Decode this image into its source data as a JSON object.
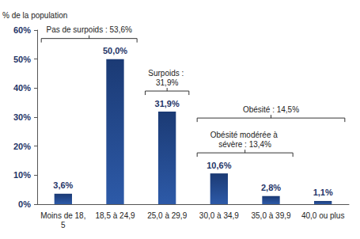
{
  "chart_data": {
    "type": "bar",
    "ylabel": "% de la population",
    "categories": [
      "Moins de 18,5",
      "18,5 à 24,9",
      "25,0 à 29,9",
      "30,0 à 34,9",
      "35,0 à 39,9",
      "40,0 ou plus"
    ],
    "values": [
      3.6,
      50.0,
      31.9,
      10.6,
      2.8,
      1.1
    ],
    "value_labels": [
      "3,6%",
      "50,0%",
      "31,9%",
      "10,6%",
      "2,8%",
      "1,1%"
    ],
    "data_labels": true,
    "color": "#1b3a74",
    "ylim": [
      0,
      60
    ],
    "yticks": [
      {
        "value": 0,
        "label": "0%"
      },
      {
        "value": 10,
        "label": "10%"
      },
      {
        "value": 20,
        "label": "20%"
      },
      {
        "value": 30,
        "label": "30%"
      },
      {
        "value": 40,
        "label": "40%"
      },
      {
        "value": 50,
        "label": "50%"
      },
      {
        "value": 60,
        "label": "60%"
      }
    ],
    "grid": false,
    "annotations": [
      {
        "text": "Pas de surpoids : 53,6%",
        "span": [
          "Moins de 18,5",
          "18,5 à 24,9"
        ]
      },
      {
        "text": "Surpoids : 31,9%",
        "span": [
          "25,0 à 29,9",
          "25,0 à 29,9"
        ]
      },
      {
        "text": "Obésité : 14,5%",
        "span": [
          "30,0 à 34,9",
          "40,0 ou plus"
        ]
      },
      {
        "text": "Obésité modérée à sévère : 13,4%",
        "span": [
          "30,0 à 34,9",
          "35,0 à 39,9"
        ]
      }
    ]
  }
}
